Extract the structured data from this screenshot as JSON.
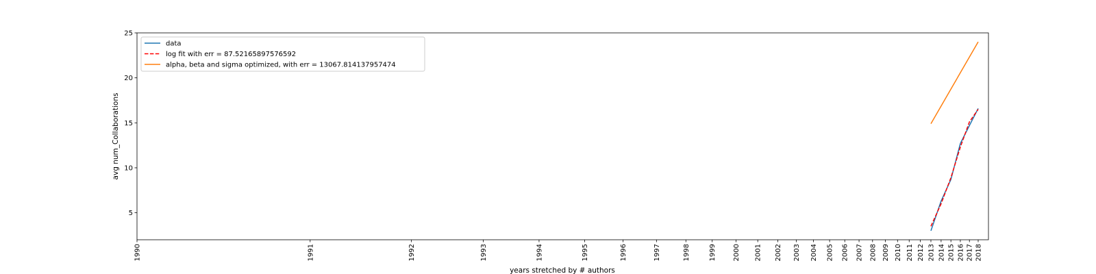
{
  "chart_data": {
    "type": "line",
    "title": "",
    "xlabel": "years stretched by # authors",
    "ylabel": "avg num_Collaborations",
    "ylim": [
      2,
      25
    ],
    "yticks": [
      5,
      10,
      15,
      20,
      25
    ],
    "x_tick_labels": [
      "1990",
      "1991",
      "1992",
      "1993",
      "1994",
      "1995",
      "1996",
      "1997",
      "1998",
      "1999",
      "2000",
      "2001",
      "2002",
      "2003",
      "2004",
      "2005",
      "2006",
      "2007",
      "2008",
      "2009",
      "2010",
      "2011",
      "2012",
      "2013",
      "2014",
      "2015",
      "2016",
      "2017",
      "2018"
    ],
    "legend_position": "upper-left",
    "grid": false,
    "series": [
      {
        "name": "data",
        "color": "#1f77b4",
        "style": "solid",
        "x": [
          "2013",
          "2014",
          "2015",
          "2016",
          "2017",
          "2018"
        ],
        "y": [
          3.0,
          6.3,
          8.7,
          12.7,
          14.7,
          16.6
        ]
      },
      {
        "name": "log fit with err = 87.52165897576592",
        "color": "#ff0000",
        "style": "dashed",
        "x": [
          "2013",
          "2014",
          "2015",
          "2016",
          "2017",
          "2018"
        ],
        "y": [
          3.5,
          6.0,
          8.9,
          12.3,
          15.1,
          16.5
        ]
      },
      {
        "name": "alpha, beta and sigma optimized, with err = 13067.814137957474",
        "color": "#ff7f0e",
        "style": "solid",
        "x": [
          "2013",
          "2018"
        ],
        "y": [
          14.9,
          24.0
        ]
      }
    ]
  }
}
